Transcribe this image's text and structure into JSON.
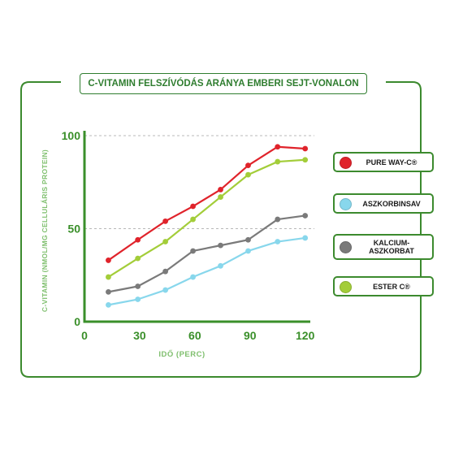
{
  "chart_data": {
    "type": "line",
    "title": "C-VITAMIN FELSZÍVÓDÁS ARÁNYA EMBERI SEJT-VONALON",
    "xlabel": "IDŐ (PERC)",
    "ylabel": "C-VITAMIN (NMOL/MG CELLULÁRIS PROTEIN)",
    "xlim": [
      0,
      125
    ],
    "ylim": [
      0,
      100
    ],
    "x_ticks": [
      "0",
      "30",
      "60",
      "90",
      "120"
    ],
    "y_ticks": [
      "0",
      "50",
      "100"
    ],
    "grid": "dashed horizontal at 50 and 100",
    "legend_position": "right",
    "x": [
      13,
      29,
      44,
      59,
      74,
      89,
      105,
      120
    ],
    "series": [
      {
        "name": "PURE WAY-C®",
        "color": "#e0232b",
        "values": [
          33,
          44,
          54,
          62,
          71,
          84,
          94,
          93
        ]
      },
      {
        "name": "ASZKORBINSAV",
        "color": "#88d7ec",
        "values": [
          9,
          12,
          17,
          24,
          30,
          38,
          43,
          45
        ]
      },
      {
        "name": "KALCIUM-\nASZKORBAT",
        "color": "#7a7a7a",
        "values": [
          16,
          19,
          27,
          38,
          41,
          44,
          55,
          57
        ]
      },
      {
        "name": "ESTER C®",
        "color": "#a3cd39",
        "values": [
          24,
          34,
          43,
          55,
          67,
          79,
          86,
          87
        ]
      }
    ]
  }
}
